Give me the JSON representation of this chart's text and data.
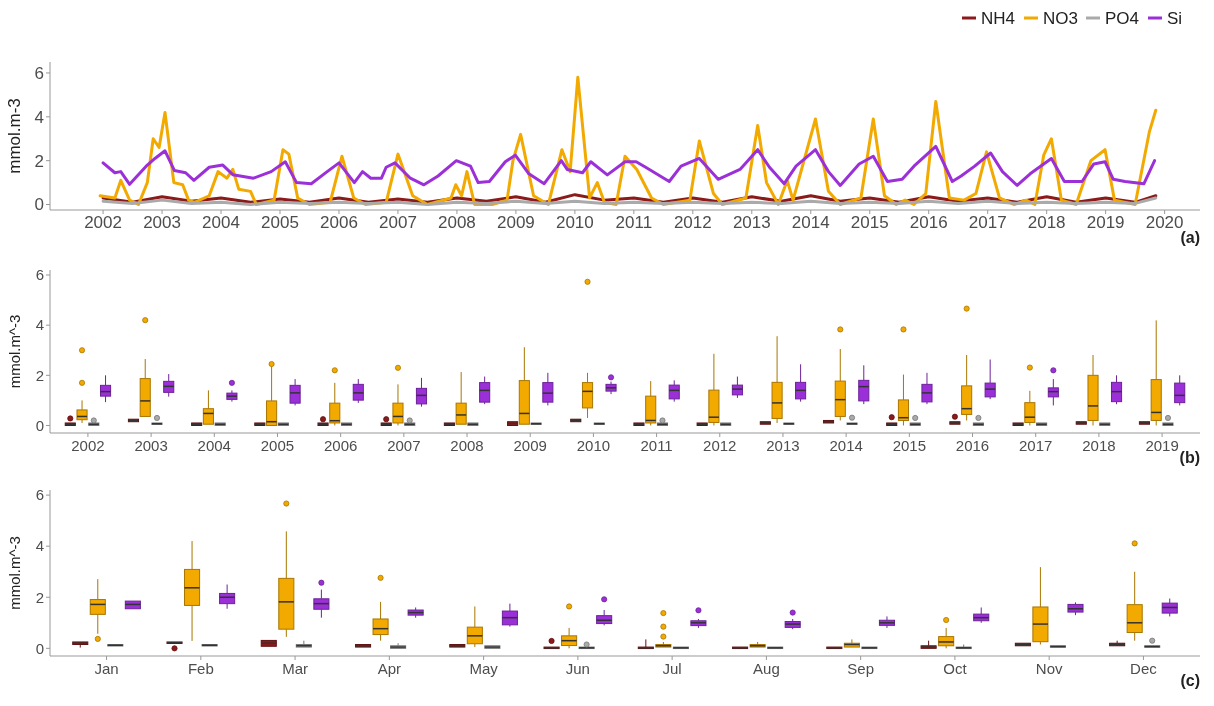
{
  "chart_data": [
    {
      "type": "line",
      "ylabel": "mmol.m-3",
      "xlim": [
        2001.1,
        2020.6
      ],
      "xticks": [
        2002,
        2003,
        2004,
        2005,
        2006,
        2007,
        2008,
        2009,
        2010,
        2011,
        2012,
        2013,
        2014,
        2015,
        2016,
        2017,
        2018,
        2019,
        2020
      ],
      "ylim": [
        -0.25,
        6.5
      ],
      "yticks": [
        0,
        2,
        4,
        6
      ],
      "legend": "top right",
      "annotations": [
        "(a)"
      ],
      "series": [
        {
          "name": "NH4",
          "color": "#8b1a1a",
          "x": [
            2002.0,
            2002.5,
            2003.0,
            2003.5,
            2004.0,
            2004.5,
            2005.0,
            2005.5,
            2006.0,
            2006.5,
            2007.0,
            2007.5,
            2008.0,
            2008.5,
            2009.0,
            2009.5,
            2010.0,
            2010.5,
            2011.0,
            2011.5,
            2012.0,
            2012.5,
            2013.0,
            2013.5,
            2014.0,
            2014.5,
            2015.0,
            2015.5,
            2016.0,
            2016.5,
            2017.0,
            2017.5,
            2018.0,
            2018.5,
            2019.0,
            2019.5,
            2019.85
          ],
          "values": [
            0.3,
            0.1,
            0.35,
            0.15,
            0.3,
            0.1,
            0.25,
            0.1,
            0.3,
            0.1,
            0.25,
            0.1,
            0.3,
            0.15,
            0.35,
            0.1,
            0.45,
            0.2,
            0.3,
            0.1,
            0.3,
            0.1,
            0.35,
            0.15,
            0.4,
            0.15,
            0.3,
            0.1,
            0.35,
            0.15,
            0.3,
            0.1,
            0.35,
            0.1,
            0.3,
            0.1,
            0.4
          ]
        },
        {
          "name": "NO3",
          "color": "#f2a900",
          "x": [
            2001.95,
            2002.2,
            2002.3,
            2002.45,
            2002.6,
            2002.75,
            2002.85,
            2002.95,
            2003.05,
            2003.2,
            2003.35,
            2003.45,
            2003.55,
            2003.8,
            2003.95,
            2004.1,
            2004.2,
            2004.3,
            2004.5,
            2004.6,
            2004.9,
            2005.05,
            2005.15,
            2005.3,
            2005.5,
            2005.85,
            2006.05,
            2006.25,
            2006.45,
            2006.8,
            2007.0,
            2007.25,
            2007.5,
            2007.9,
            2007.98,
            2008.08,
            2008.17,
            2008.3,
            2008.6,
            2008.85,
            2008.95,
            2009.08,
            2009.3,
            2009.55,
            2009.78,
            2009.92,
            2010.05,
            2010.25,
            2010.38,
            2010.5,
            2010.7,
            2010.85,
            2011.05,
            2011.3,
            2011.5,
            2011.95,
            2012.11,
            2012.35,
            2012.5,
            2012.9,
            2013.1,
            2013.25,
            2013.45,
            2013.6,
            2013.7,
            2014.08,
            2014.3,
            2014.5,
            2014.85,
            2015.06,
            2015.25,
            2015.45,
            2015.6,
            2015.75,
            2015.95,
            2016.12,
            2016.35,
            2016.6,
            2016.8,
            2016.98,
            2017.2,
            2017.45,
            2017.65,
            2017.8,
            2017.95,
            2018.08,
            2018.25,
            2018.5,
            2018.75,
            2018.99,
            2019.15,
            2019.5,
            2019.74,
            2019.85
          ],
          "values": [
            0.4,
            0.3,
            1.1,
            0.2,
            0.0,
            1.0,
            3.0,
            2.6,
            4.2,
            1.0,
            0.9,
            0.2,
            0.1,
            0.4,
            1.5,
            1.2,
            1.6,
            0.7,
            0.6,
            0.0,
            0.2,
            2.5,
            2.3,
            0.3,
            0.0,
            0.1,
            2.2,
            0.3,
            0.0,
            0.1,
            2.3,
            0.4,
            0.0,
            0.3,
            0.9,
            0.4,
            1.5,
            0.0,
            0.0,
            0.2,
            2.0,
            3.2,
            0.4,
            0.0,
            2.5,
            1.5,
            5.8,
            0.3,
            1.0,
            0.1,
            0.0,
            2.2,
            1.6,
            0.3,
            0.0,
            0.2,
            2.9,
            0.5,
            0.0,
            0.3,
            3.6,
            1.0,
            0.0,
            1.1,
            0.2,
            3.9,
            0.6,
            0.0,
            0.3,
            3.9,
            0.4,
            0.0,
            0.2,
            0.0,
            0.5,
            4.7,
            0.3,
            0.2,
            0.5,
            2.4,
            0.3,
            0.0,
            0.2,
            0.0,
            2.25,
            3.0,
            0.2,
            0.0,
            2.0,
            2.5,
            0.2,
            0.0,
            3.3,
            4.3
          ]
        },
        {
          "name": "PO4",
          "color": "#aaaaaa",
          "x": [
            2002.0,
            2002.5,
            2003.0,
            2003.5,
            2004.0,
            2004.5,
            2005.0,
            2005.5,
            2006.0,
            2006.5,
            2007.0,
            2007.5,
            2008.0,
            2008.5,
            2009.0,
            2009.5,
            2010.0,
            2010.5,
            2011.0,
            2011.5,
            2012.0,
            2012.5,
            2013.0,
            2013.5,
            2014.0,
            2014.5,
            2015.0,
            2015.5,
            2016.0,
            2016.5,
            2017.0,
            2017.5,
            2018.0,
            2018.5,
            2019.0,
            2019.5,
            2019.85
          ],
          "values": [
            0.15,
            0.05,
            0.2,
            0.05,
            0.1,
            0.0,
            0.1,
            0.05,
            0.1,
            0.05,
            0.1,
            0.0,
            0.1,
            0.05,
            0.15,
            0.05,
            0.15,
            0.05,
            0.1,
            0.05,
            0.1,
            0.05,
            0.1,
            0.05,
            0.15,
            0.05,
            0.1,
            0.05,
            0.15,
            0.05,
            0.15,
            0.05,
            0.1,
            0.05,
            0.1,
            0.05,
            0.3
          ]
        },
        {
          "name": "Si",
          "color": "#9b30d9",
          "x": [
            2002.0,
            2002.2,
            2002.3,
            2002.45,
            2002.75,
            2002.88,
            2003.05,
            2003.21,
            2003.4,
            2003.54,
            2003.8,
            2004.03,
            2004.2,
            2004.55,
            2004.85,
            2005.09,
            2005.28,
            2005.53,
            2005.8,
            2006.0,
            2006.26,
            2006.4,
            2006.54,
            2006.72,
            2006.8,
            2006.95,
            2007.21,
            2007.44,
            2007.68,
            2007.99,
            2008.23,
            2008.36,
            2008.55,
            2008.82,
            2008.99,
            2009.22,
            2009.48,
            2009.77,
            2009.87,
            2010.13,
            2010.27,
            2010.55,
            2010.85,
            2011.04,
            2011.2,
            2011.6,
            2011.8,
            2012.11,
            2012.43,
            2012.8,
            2013.1,
            2013.3,
            2013.55,
            2013.75,
            2014.08,
            2014.3,
            2014.5,
            2014.82,
            2015.06,
            2015.3,
            2015.55,
            2015.75,
            2016.12,
            2016.4,
            2016.55,
            2016.78,
            2017.05,
            2017.25,
            2017.5,
            2017.72,
            2018.08,
            2018.3,
            2018.6,
            2018.8,
            2018.99,
            2019.13,
            2019.33,
            2019.65,
            2019.83
          ],
          "values": [
            1.9,
            1.45,
            1.5,
            0.92,
            1.8,
            2.1,
            2.45,
            1.55,
            1.45,
            1.1,
            1.7,
            1.8,
            1.36,
            1.2,
            1.5,
            1.95,
            1.0,
            0.95,
            1.5,
            1.9,
            1.0,
            1.5,
            1.2,
            1.2,
            1.7,
            1.9,
            1.2,
            0.9,
            1.3,
            2.0,
            1.75,
            1.0,
            1.05,
            1.95,
            2.25,
            1.4,
            0.95,
            2.0,
            1.6,
            1.45,
            1.95,
            1.35,
            1.95,
            1.95,
            1.7,
            1.05,
            1.75,
            2.1,
            1.15,
            1.6,
            2.5,
            1.7,
            0.95,
            1.75,
            2.5,
            1.5,
            0.87,
            1.85,
            2.2,
            1.05,
            1.15,
            1.75,
            2.65,
            1.05,
            1.3,
            1.75,
            2.35,
            1.5,
            0.87,
            1.4,
            2.1,
            1.05,
            1.05,
            1.85,
            1.95,
            1.15,
            1.05,
            0.95,
            2.0
          ]
        }
      ]
    },
    {
      "type": "box",
      "ylabel": "mmol.m^-3",
      "categories": [
        "2002",
        "2003",
        "2004",
        "2005",
        "2006",
        "2007",
        "2008",
        "2009",
        "2010",
        "2011",
        "2012",
        "2013",
        "2014",
        "2015",
        "2016",
        "2017",
        "2018",
        "2019"
      ],
      "ylim": [
        -0.3,
        6.2
      ],
      "yticks": [
        0,
        2,
        4,
        6
      ],
      "annotations": [
        "(b)"
      ],
      "series": [
        {
          "color": "#8b1a1a",
          "boxes": [
            {
              "low": 0,
              "q1": 0,
              "median": 0.05,
              "q3": 0.1,
              "high": 0.1,
              "outliers": [
                0.28
              ]
            },
            {
              "low": 0.15,
              "q1": 0.15,
              "median": 0.2,
              "q3": 0.25,
              "high": 0.25
            },
            {
              "low": 0,
              "q1": 0,
              "median": 0.05,
              "q3": 0.1,
              "high": 0.1
            },
            {
              "low": 0,
              "q1": 0,
              "median": 0.05,
              "q3": 0.1,
              "high": 0.1
            },
            {
              "low": 0,
              "q1": 0,
              "median": 0.05,
              "q3": 0.1,
              "high": 0.1,
              "outliers": [
                0.25
              ]
            },
            {
              "low": 0,
              "q1": 0,
              "median": 0.05,
              "q3": 0.1,
              "high": 0.1,
              "outliers": [
                0.25
              ]
            },
            {
              "low": 0,
              "q1": 0,
              "median": 0.05,
              "q3": 0.1,
              "high": 0.1
            },
            {
              "low": 0,
              "q1": 0,
              "median": 0.08,
              "q3": 0.15,
              "high": 0.15
            },
            {
              "low": 0.15,
              "q1": 0.15,
              "median": 0.2,
              "q3": 0.25,
              "high": 0.25
            },
            {
              "low": 0,
              "q1": 0,
              "median": 0.05,
              "q3": 0.1,
              "high": 0.1
            },
            {
              "low": 0,
              "q1": 0,
              "median": 0.05,
              "q3": 0.1,
              "high": 0.1
            },
            {
              "low": 0.05,
              "q1": 0.05,
              "median": 0.1,
              "q3": 0.15,
              "high": 0.15
            },
            {
              "low": 0.1,
              "q1": 0.1,
              "median": 0.15,
              "q3": 0.2,
              "high": 0.2
            },
            {
              "low": 0,
              "q1": 0,
              "median": 0.05,
              "q3": 0.1,
              "high": 0.1,
              "outliers": [
                0.33
              ]
            },
            {
              "low": 0.05,
              "q1": 0.05,
              "median": 0.1,
              "q3": 0.15,
              "high": 0.15,
              "outliers": [
                0.35
              ]
            },
            {
              "low": 0,
              "q1": 0,
              "median": 0.05,
              "q3": 0.1,
              "high": 0.1
            },
            {
              "low": 0.05,
              "q1": 0.05,
              "median": 0.1,
              "q3": 0.15,
              "high": 0.15
            },
            {
              "low": 0.05,
              "q1": 0.05,
              "median": 0.1,
              "q3": 0.15,
              "high": 0.15
            }
          ]
        },
        {
          "color": "#f2a900",
          "boxes": [
            {
              "low": 0.1,
              "q1": 0.23,
              "median": 0.36,
              "q3": 0.62,
              "high": 1.0,
              "outliers": [
                1.7,
                3.0
              ]
            },
            {
              "low": 0.36,
              "q1": 0.36,
              "median": 0.98,
              "q3": 1.87,
              "high": 2.65,
              "outliers": [
                4.2
              ]
            },
            {
              "low": 0.05,
              "q1": 0.05,
              "median": 0.48,
              "q3": 0.67,
              "high": 1.4
            },
            {
              "low": 0,
              "q1": 0,
              "median": 0.15,
              "q3": 0.98,
              "high": 2.35,
              "outliers": [
                2.45
              ]
            },
            {
              "low": 0,
              "q1": 0.1,
              "median": 0.19,
              "q3": 0.89,
              "high": 1.7,
              "outliers": [
                2.2
              ]
            },
            {
              "low": 0,
              "q1": 0.1,
              "median": 0.36,
              "q3": 0.89,
              "high": 1.64,
              "outliers": [
                2.3
              ]
            },
            {
              "low": 0.05,
              "q1": 0.05,
              "median": 0.42,
              "q3": 0.89,
              "high": 2.13
            },
            {
              "low": 0.05,
              "q1": 0.05,
              "median": 0.48,
              "q3": 1.79,
              "high": 3.12
            },
            {
              "low": 0.3,
              "q1": 0.7,
              "median": 1.36,
              "q3": 1.71,
              "high": 2.1,
              "outliers": [
                5.73
              ]
            },
            {
              "low": 0,
              "q1": 0.1,
              "median": 0.2,
              "q3": 1.17,
              "high": 1.77
            },
            {
              "low": 0,
              "q1": 0.12,
              "median": 0.33,
              "q3": 1.41,
              "high": 2.86
            },
            {
              "low": 0.1,
              "q1": 0.28,
              "median": 0.9,
              "q3": 1.72,
              "high": 3.56
            },
            {
              "low": 0.2,
              "q1": 0.36,
              "median": 1.03,
              "q3": 1.77,
              "high": 3.05,
              "outliers": [
                3.83
              ]
            },
            {
              "low": 0,
              "q1": 0.2,
              "median": 0.31,
              "q3": 1.02,
              "high": 2.03,
              "outliers": [
                3.83
              ]
            },
            {
              "low": 0.2,
              "q1": 0.44,
              "median": 0.67,
              "q3": 1.58,
              "high": 2.81,
              "outliers": [
                4.66
              ]
            },
            {
              "low": 0,
              "q1": 0.12,
              "median": 0.33,
              "q3": 0.91,
              "high": 1.38,
              "outliers": [
                2.31
              ]
            },
            {
              "low": 0,
              "q1": 0.2,
              "median": 0.78,
              "q3": 2.0,
              "high": 2.81
            },
            {
              "low": 0,
              "q1": 0.2,
              "median": 0.52,
              "q3": 1.83,
              "high": 4.19
            }
          ]
        },
        {
          "color": "#aaaaaa",
          "boxes": [
            {
              "low": 0,
              "q1": 0,
              "median": 0.05,
              "q3": 0.1,
              "high": 0.1,
              "outliers": [
                0.2
              ]
            },
            {
              "low": 0.05,
              "q1": 0.05,
              "median": 0.07,
              "q3": 0.1,
              "high": 0.1,
              "outliers": [
                0.3
              ]
            },
            {
              "low": 0,
              "q1": 0,
              "median": 0.05,
              "q3": 0.1,
              "high": 0.1
            },
            {
              "low": 0,
              "q1": 0,
              "median": 0.05,
              "q3": 0.1,
              "high": 0.1
            },
            {
              "low": 0,
              "q1": 0,
              "median": 0.05,
              "q3": 0.1,
              "high": 0.1
            },
            {
              "low": 0,
              "q1": 0,
              "median": 0.05,
              "q3": 0.1,
              "high": 0.1,
              "outliers": [
                0.2
              ]
            },
            {
              "low": 0,
              "q1": 0,
              "median": 0.05,
              "q3": 0.1,
              "high": 0.1
            },
            {
              "low": 0.05,
              "q1": 0.05,
              "median": 0.07,
              "q3": 0.1,
              "high": 0.1
            },
            {
              "low": 0.05,
              "q1": 0.05,
              "median": 0.07,
              "q3": 0.1,
              "high": 0.1
            },
            {
              "low": 0,
              "q1": 0,
              "median": 0.05,
              "q3": 0.1,
              "high": 0.1,
              "outliers": [
                0.2
              ]
            },
            {
              "low": 0,
              "q1": 0,
              "median": 0.05,
              "q3": 0.1,
              "high": 0.1
            },
            {
              "low": 0.05,
              "q1": 0.05,
              "median": 0.07,
              "q3": 0.1,
              "high": 0.1
            },
            {
              "low": 0.05,
              "q1": 0.05,
              "median": 0.07,
              "q3": 0.1,
              "high": 0.1,
              "outliers": [
                0.31
              ]
            },
            {
              "low": 0,
              "q1": 0,
              "median": 0.05,
              "q3": 0.1,
              "high": 0.1,
              "outliers": [
                0.3
              ]
            },
            {
              "low": 0,
              "q1": 0,
              "median": 0.05,
              "q3": 0.1,
              "high": 0.1,
              "outliers": [
                0.3
              ]
            },
            {
              "low": 0,
              "q1": 0,
              "median": 0.05,
              "q3": 0.1,
              "high": 0.1
            },
            {
              "low": 0,
              "q1": 0,
              "median": 0.05,
              "q3": 0.1,
              "high": 0.1
            },
            {
              "low": 0,
              "q1": 0,
              "median": 0.05,
              "q3": 0.1,
              "high": 0.1,
              "outliers": [
                0.3
              ]
            }
          ]
        },
        {
          "color": "#9b30d9",
          "boxes": [
            {
              "low": 0.93,
              "q1": 1.17,
              "median": 1.35,
              "q3": 1.6,
              "high": 2.0
            },
            {
              "low": 1.15,
              "q1": 1.32,
              "median": 1.56,
              "q3": 1.76,
              "high": 2.05
            },
            {
              "low": 0.95,
              "q1": 1.04,
              "median": 1.17,
              "q3": 1.29,
              "high": 1.4,
              "outliers": [
                1.7
              ]
            },
            {
              "low": 0.8,
              "q1": 0.89,
              "median": 1.3,
              "q3": 1.6,
              "high": 1.85
            },
            {
              "low": 0.9,
              "q1": 1.01,
              "median": 1.3,
              "q3": 1.64,
              "high": 1.85
            },
            {
              "low": 0.75,
              "q1": 0.86,
              "median": 1.2,
              "q3": 1.48,
              "high": 1.9
            },
            {
              "low": 0.85,
              "q1": 0.93,
              "median": 1.4,
              "q3": 1.71,
              "high": 1.95
            },
            {
              "low": 0.8,
              "q1": 0.93,
              "median": 1.29,
              "q3": 1.71,
              "high": 2.1
            },
            {
              "low": 1.25,
              "q1": 1.37,
              "median": 1.5,
              "q3": 1.64,
              "high": 1.75,
              "outliers": [
                1.92
              ]
            },
            {
              "low": 0.95,
              "q1": 1.06,
              "median": 1.4,
              "q3": 1.61,
              "high": 1.8
            },
            {
              "low": 1.1,
              "q1": 1.22,
              "median": 1.45,
              "q3": 1.61,
              "high": 1.95
            },
            {
              "low": 0.95,
              "q1": 1.06,
              "median": 1.4,
              "q3": 1.72,
              "high": 2.44
            },
            {
              "low": 0.85,
              "q1": 0.98,
              "median": 1.55,
              "q3": 1.8,
              "high": 2.4
            },
            {
              "low": 0.85,
              "q1": 0.94,
              "median": 1.3,
              "q3": 1.64,
              "high": 2.1
            },
            {
              "low": 1.05,
              "q1": 1.14,
              "median": 1.45,
              "q3": 1.69,
              "high": 2.63
            },
            {
              "low": 0.8,
              "q1": 1.14,
              "median": 1.35,
              "q3": 1.5,
              "high": 1.85,
              "outliers": [
                2.2
              ]
            },
            {
              "low": 0.85,
              "q1": 0.95,
              "median": 1.35,
              "q3": 1.72,
              "high": 2.0
            },
            {
              "low": 0.8,
              "q1": 0.91,
              "median": 1.2,
              "q3": 1.69,
              "high": 2.0
            }
          ]
        }
      ]
    },
    {
      "type": "box",
      "ylabel": "mmol.m^-3",
      "categories": [
        "Jan",
        "Feb",
        "Mar",
        "Apr",
        "May",
        "Jun",
        "Jul",
        "Aug",
        "Sep",
        "Oct",
        "Nov",
        "Dec"
      ],
      "ylim": [
        -0.3,
        6.2
      ],
      "yticks": [
        0,
        2,
        4,
        6
      ],
      "annotations": [
        "(c)"
      ],
      "series": [
        {
          "color": "#8b1a1a",
          "boxes": [
            {
              "low": 0.03,
              "q1": 0.15,
              "median": 0.2,
              "q3": 0.25,
              "high": 0.25
            },
            {
              "low": 0.2,
              "q1": 0.2,
              "median": 0.22,
              "q3": 0.25,
              "high": 0.25,
              "outliers": [
                0.0
              ]
            },
            {
              "low": 0.08,
              "q1": 0.08,
              "median": 0.2,
              "q3": 0.31,
              "high": 0.31
            },
            {
              "low": 0.05,
              "q1": 0.05,
              "median": 0.1,
              "q3": 0.15,
              "high": 0.15
            },
            {
              "low": 0.05,
              "q1": 0.05,
              "median": 0.1,
              "q3": 0.15,
              "high": 0.15
            },
            {
              "low": 0,
              "q1": 0,
              "median": 0.02,
              "q3": 0.05,
              "high": 0.05,
              "outliers": [
                0.29
              ]
            },
            {
              "low": 0,
              "q1": 0,
              "median": 0.02,
              "q3": 0.05,
              "high": 0.35
            },
            {
              "low": 0,
              "q1": 0,
              "median": 0.02,
              "q3": 0.05,
              "high": 0.05
            },
            {
              "low": 0,
              "q1": 0,
              "median": 0.02,
              "q3": 0.05,
              "high": 0.05
            },
            {
              "low": 0,
              "q1": 0,
              "median": 0.05,
              "q3": 0.1,
              "high": 0.3
            },
            {
              "low": 0.1,
              "q1": 0.1,
              "median": 0.15,
              "q3": 0.2,
              "high": 0.2
            },
            {
              "low": 0.1,
              "q1": 0.1,
              "median": 0.15,
              "q3": 0.2,
              "high": 0.3
            }
          ]
        },
        {
          "color": "#f2a900",
          "boxes": [
            {
              "low": 0.57,
              "q1": 1.33,
              "median": 1.72,
              "q3": 1.91,
              "high": 2.71,
              "outliers": [
                0.37
              ]
            },
            {
              "low": 0.29,
              "q1": 1.68,
              "median": 2.37,
              "q3": 3.09,
              "high": 4.2
            },
            {
              "low": 0.45,
              "q1": 0.75,
              "median": 1.82,
              "q3": 2.74,
              "high": 4.58,
              "outliers": [
                5.67
              ]
            },
            {
              "low": 0.3,
              "q1": 0.54,
              "median": 0.77,
              "q3": 1.15,
              "high": 1.82,
              "outliers": [
                2.76
              ]
            },
            {
              "low": 0.05,
              "q1": 0.18,
              "median": 0.49,
              "q3": 0.83,
              "high": 1.64
            },
            {
              "low": 0,
              "q1": 0.11,
              "median": 0.3,
              "q3": 0.49,
              "high": 0.8,
              "outliers": [
                1.64
              ]
            },
            {
              "low": 0.05,
              "q1": 0.05,
              "median": 0.1,
              "q3": 0.15,
              "high": 0.25,
              "outliers": [
                0.46,
                0.85,
                1.38
              ]
            },
            {
              "low": 0.05,
              "q1": 0.05,
              "median": 0.1,
              "q3": 0.15,
              "high": 0.25
            },
            {
              "low": 0.05,
              "q1": 0.05,
              "median": 0.15,
              "q3": 0.2,
              "high": 0.35
            },
            {
              "low": 0,
              "q1": 0.1,
              "median": 0.25,
              "q3": 0.46,
              "high": 0.8,
              "outliers": [
                1.11
              ]
            },
            {
              "low": 0.15,
              "q1": 0.26,
              "median": 0.95,
              "q3": 1.62,
              "high": 3.18
            },
            {
              "low": 0.3,
              "q1": 0.62,
              "median": 1.0,
              "q3": 1.71,
              "high": 3.0,
              "outliers": [
                4.11
              ]
            }
          ]
        },
        {
          "color": "#aaaaaa",
          "boxes": [
            {
              "low": 0.1,
              "q1": 0.1,
              "median": 0.12,
              "q3": 0.15,
              "high": 0.15
            },
            {
              "low": 0.1,
              "q1": 0.1,
              "median": 0.12,
              "q3": 0.15,
              "high": 0.15
            },
            {
              "low": 0.05,
              "q1": 0.05,
              "median": 0.1,
              "q3": 0.15,
              "high": 0.3
            },
            {
              "low": 0,
              "q1": 0,
              "median": 0.05,
              "q3": 0.1,
              "high": 0.2
            },
            {
              "low": 0,
              "q1": 0,
              "median": 0.05,
              "q3": 0.1,
              "high": 0.1
            },
            {
              "low": 0,
              "q1": 0,
              "median": 0.02,
              "q3": 0.05,
              "high": 0.05,
              "outliers": [
                0.15
              ]
            },
            {
              "low": 0,
              "q1": 0,
              "median": 0.02,
              "q3": 0.05,
              "high": 0.05
            },
            {
              "low": 0,
              "q1": 0,
              "median": 0.02,
              "q3": 0.05,
              "high": 0.05
            },
            {
              "low": 0,
              "q1": 0,
              "median": 0.02,
              "q3": 0.05,
              "high": 0.05
            },
            {
              "low": 0,
              "q1": 0,
              "median": 0.02,
              "q3": 0.05,
              "high": 0.15
            },
            {
              "low": 0.05,
              "q1": 0.05,
              "median": 0.07,
              "q3": 0.1,
              "high": 0.1
            },
            {
              "low": 0.05,
              "q1": 0.05,
              "median": 0.07,
              "q3": 0.1,
              "high": 0.1,
              "outliers": [
                0.3
              ]
            }
          ]
        },
        {
          "color": "#9b30d9",
          "boxes": [
            {
              "low": 1.55,
              "q1": 1.55,
              "median": 1.72,
              "q3": 1.85,
              "high": 1.85
            },
            {
              "low": 1.55,
              "q1": 1.75,
              "median": 2.0,
              "q3": 2.15,
              "high": 2.5
            },
            {
              "low": 1.2,
              "q1": 1.53,
              "median": 1.75,
              "q3": 1.94,
              "high": 2.3,
              "outliers": [
                2.57
              ]
            },
            {
              "low": 1.2,
              "q1": 1.3,
              "median": 1.4,
              "q3": 1.5,
              "high": 1.6
            },
            {
              "low": 0.85,
              "q1": 0.92,
              "median": 1.2,
              "q3": 1.46,
              "high": 1.75
            },
            {
              "low": 0.9,
              "q1": 0.97,
              "median": 1.1,
              "q3": 1.28,
              "high": 1.5,
              "outliers": [
                1.92
              ]
            },
            {
              "low": 0.8,
              "q1": 0.89,
              "median": 1.0,
              "q3": 1.08,
              "high": 1.15,
              "outliers": [
                1.49
              ]
            },
            {
              "low": 0.75,
              "q1": 0.82,
              "median": 0.95,
              "q3": 1.05,
              "high": 1.15,
              "outliers": [
                1.4
              ]
            },
            {
              "low": 0.8,
              "q1": 0.9,
              "median": 1.0,
              "q3": 1.1,
              "high": 1.25
            },
            {
              "low": 1.0,
              "q1": 1.08,
              "median": 1.2,
              "q3": 1.34,
              "high": 1.6
            },
            {
              "low": 1.3,
              "q1": 1.42,
              "median": 1.55,
              "q3": 1.72,
              "high": 1.8
            },
            {
              "low": 1.25,
              "q1": 1.38,
              "median": 1.6,
              "q3": 1.77,
              "high": 1.95
            }
          ]
        }
      ]
    }
  ]
}
